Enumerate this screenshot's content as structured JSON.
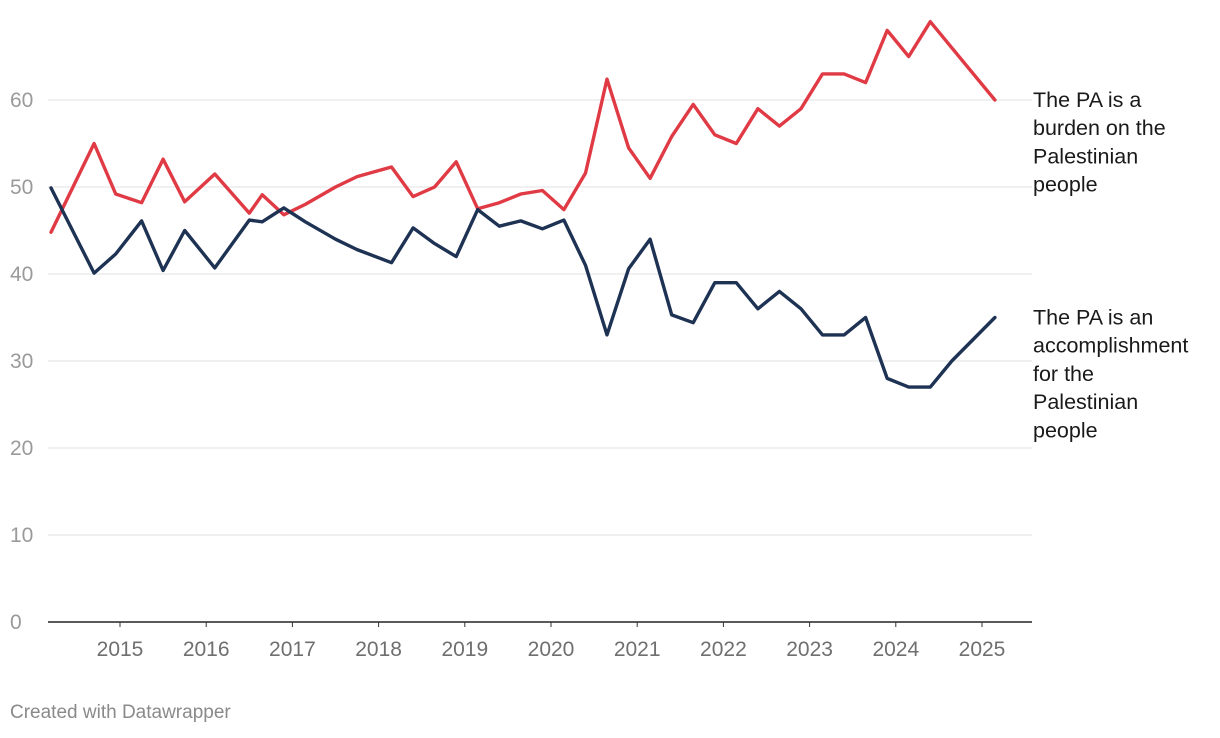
{
  "chart_data": {
    "type": "line",
    "title": "",
    "xlabel": "",
    "ylabel": "",
    "ylim": [
      0,
      70
    ],
    "yticks": [
      0,
      10,
      20,
      30,
      40,
      50,
      60
    ],
    "xlim": [
      2014.4,
      2025.6
    ],
    "xticks": [
      2015,
      2016,
      2017,
      2018,
      2019,
      2020,
      2021,
      2022,
      2023,
      2024,
      2025
    ],
    "grid": true,
    "legend": "direct labels at right end of lines",
    "series": [
      {
        "name": "The PA is a burden on the Palestinian people",
        "label_lines": [
          "The PA is a",
          "burden on the",
          "Palestinian",
          "people"
        ],
        "color": "#e03a45",
        "x": [
          2014.2,
          2014.7,
          2014.95,
          2015.25,
          2015.5,
          2015.75,
          2016.1,
          2016.5,
          2016.65,
          2016.9,
          2017.15,
          2017.5,
          2017.75,
          2018.15,
          2018.4,
          2018.65,
          2018.9,
          2019.15,
          2019.4,
          2019.65,
          2019.9,
          2020.15,
          2020.4,
          2020.65,
          2020.9,
          2021.15,
          2021.4,
          2021.65,
          2021.9,
          2022.15,
          2022.4,
          2022.65,
          2022.9,
          2023.15,
          2023.4,
          2023.65,
          2023.9,
          2024.15,
          2024.4,
          2024.65,
          2025.15
        ],
        "values": [
          44.8,
          55.0,
          49.2,
          48.2,
          53.2,
          48.3,
          51.5,
          47.0,
          49.1,
          46.8,
          48.0,
          50.0,
          51.2,
          52.3,
          48.9,
          50.0,
          52.9,
          47.5,
          48.2,
          49.2,
          49.6,
          47.4,
          51.6,
          62.4,
          54.5,
          51.0,
          55.8,
          59.5,
          56.0,
          55.0,
          59.0,
          57.0,
          59.0,
          63.0,
          63.0,
          62.0,
          68.0,
          65.0,
          69.0,
          66.0,
          60.0
        ]
      },
      {
        "name": "The PA is an accomplishment for the Palestinian people",
        "label_lines": [
          "The PA is an",
          "accomplishment",
          "for the",
          "Palestinian",
          "people"
        ],
        "color": "#1e3253",
        "x": [
          2014.2,
          2014.7,
          2014.95,
          2015.25,
          2015.5,
          2015.75,
          2016.1,
          2016.5,
          2016.65,
          2016.9,
          2017.15,
          2017.5,
          2017.75,
          2018.15,
          2018.4,
          2018.65,
          2018.9,
          2019.15,
          2019.4,
          2019.65,
          2019.9,
          2020.15,
          2020.4,
          2020.65,
          2020.9,
          2021.15,
          2021.4,
          2021.65,
          2021.9,
          2022.15,
          2022.4,
          2022.65,
          2022.9,
          2023.15,
          2023.4,
          2023.65,
          2023.9,
          2024.15,
          2024.4,
          2024.65,
          2025.15
        ],
        "values": [
          49.9,
          40.1,
          42.3,
          46.1,
          40.4,
          45.0,
          40.7,
          46.2,
          46.0,
          47.6,
          46.0,
          44.0,
          42.8,
          41.3,
          45.3,
          43.5,
          42.0,
          47.4,
          45.5,
          46.1,
          45.2,
          46.2,
          41.0,
          33.0,
          40.6,
          44.0,
          35.3,
          34.4,
          39.0,
          39.0,
          36.0,
          38.0,
          36.0,
          33.0,
          33.0,
          35.0,
          28.0,
          27.0,
          27.0,
          30.0,
          35.0
        ]
      }
    ]
  },
  "footer": {
    "credit": "Created with Datawrapper"
  }
}
